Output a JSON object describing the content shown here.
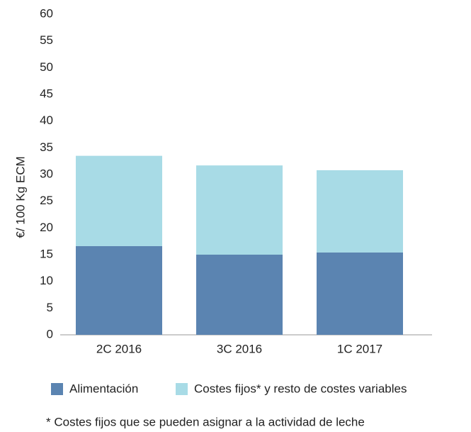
{
  "chart_data": {
    "type": "stacked-bar",
    "y_label": "€/ 100 Kg ECM",
    "categories": [
      "2C 2016",
      "3C 2016",
      "1C 2017"
    ],
    "series": [
      {
        "name": "Alimentación",
        "color": "#5b84b1",
        "values": [
          16.6,
          15.0,
          15.4
        ]
      },
      {
        "name": "Costes fijos* y resto de costes variables",
        "color": "#a8dbe6",
        "values": [
          16.9,
          16.7,
          15.4
        ]
      }
    ],
    "ylim": [
      0,
      60
    ],
    "yticks": [
      0,
      5,
      10,
      15,
      20,
      25,
      30,
      35,
      40,
      45,
      50,
      55,
      60
    ],
    "grid": false,
    "footnote": "* Costes fijos que se pueden asignar a la actividad de leche"
  }
}
